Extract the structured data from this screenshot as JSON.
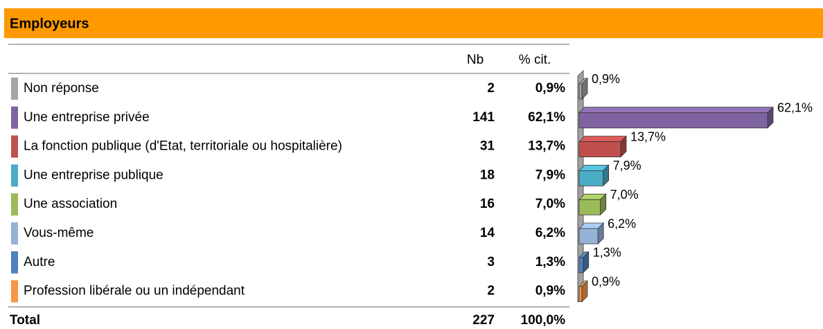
{
  "title": "Employeurs",
  "table": {
    "columns": [
      "Nb",
      "% cit."
    ],
    "rows": [
      {
        "label": "Non réponse",
        "nb": 2,
        "pct": 0.9,
        "pct_label": "0,9%",
        "color": "#a5a5a5"
      },
      {
        "label": "Une entreprise privée",
        "nb": 141,
        "pct": 62.1,
        "pct_label": "62,1%",
        "color": "#8064a2"
      },
      {
        "label": "La fonction publique (d'Etat, territoriale ou hospitalière)",
        "nb": 31,
        "pct": 13.7,
        "pct_label": "13,7%",
        "color": "#c0504d"
      },
      {
        "label": "Une entreprise publique",
        "nb": 18,
        "pct": 7.9,
        "pct_label": "7,9%",
        "color": "#4bacc6"
      },
      {
        "label": "Une association",
        "nb": 16,
        "pct": 7.0,
        "pct_label": "7,0%",
        "color": "#9bbb59"
      },
      {
        "label": "Vous-même",
        "nb": 14,
        "pct": 6.2,
        "pct_label": "6,2%",
        "color": "#95b3d7"
      },
      {
        "label": "Autre",
        "nb": 3,
        "pct": 1.3,
        "pct_label": "1,3%",
        "color": "#4f81bd"
      },
      {
        "label": "Profession libérale ou un indépendant",
        "nb": 2,
        "pct": 0.9,
        "pct_label": "0,9%",
        "color": "#f79646"
      }
    ],
    "total": {
      "label": "Total",
      "nb": 227,
      "pct": 100,
      "pct_label": "100,0%"
    }
  }
}
